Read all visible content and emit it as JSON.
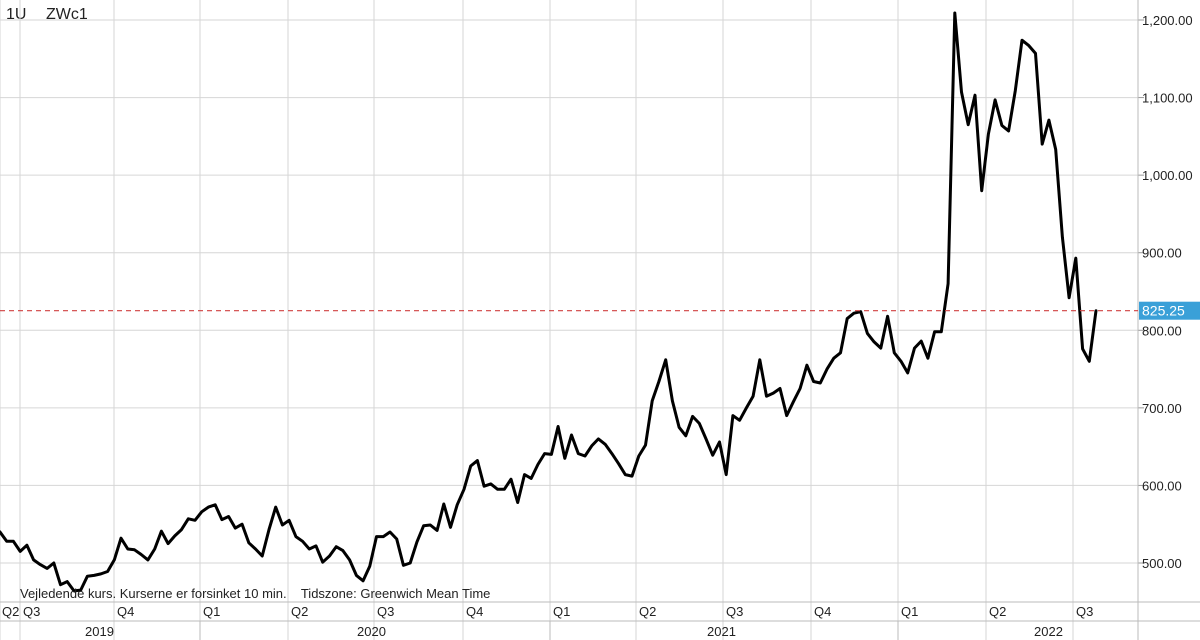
{
  "header": {
    "interval": "1U",
    "symbol": "ZWc1"
  },
  "footer_note": "Vejledende kurs. Kurserne er forsinket 10 min.    Tidszone: Greenwich Mean Time",
  "colors": {
    "line": "#000000",
    "reference_line": "#d04040",
    "price_tag": "#3aa0d8",
    "grid": "#d6d6d6"
  },
  "chart_data": {
    "type": "line",
    "title": "",
    "xlabel": "",
    "ylabel": "",
    "ylim": [
      450,
      1220
    ],
    "ytick_values": [
      500,
      600,
      700,
      800,
      900,
      1000,
      1100,
      1200
    ],
    "ytick_labels": [
      "500.00",
      "600.00",
      "700.00",
      "800.00",
      "900.00",
      "1,000.00",
      "1,100.00",
      "1,200.00"
    ],
    "current_price": 825.25,
    "current_price_label": "825.25",
    "grid": true,
    "quarter_labels": [
      "Q2",
      "Q3",
      "Q4",
      "Q1",
      "Q2",
      "Q3",
      "Q4",
      "Q1",
      "Q2",
      "Q3",
      "Q4",
      "Q1",
      "Q2",
      "Q3"
    ],
    "year_labels": [
      "2019",
      "2020",
      "2021",
      "2022"
    ],
    "series": [
      {
        "values": [
          540,
          528,
          528,
          515,
          523,
          504,
          498,
          493,
          500,
          472,
          476,
          464,
          465,
          483,
          484,
          486,
          489,
          504,
          532,
          518,
          517,
          511,
          504,
          518,
          541,
          525,
          535,
          543,
          557,
          555,
          566,
          572,
          575,
          556,
          560,
          545,
          550,
          526,
          518,
          509,
          543,
          572,
          549,
          555,
          534,
          528,
          518,
          522,
          501,
          509,
          521,
          516,
          504,
          484,
          477,
          496,
          534,
          534,
          540,
          531,
          497,
          500,
          527,
          548,
          549,
          542,
          576,
          546,
          575,
          595,
          625,
          632,
          599,
          602,
          595,
          595,
          608,
          578,
          614,
          609,
          627,
          641,
          640,
          676,
          635,
          665,
          641,
          638,
          651,
          660,
          653,
          641,
          628,
          614,
          612,
          638,
          652,
          709,
          734,
          762,
          709,
          675,
          664,
          689,
          680,
          660,
          639,
          656,
          614,
          690,
          684,
          700,
          715,
          762,
          715,
          719,
          725,
          690,
          708,
          725,
          755,
          734,
          732,
          750,
          764,
          771,
          815,
          822,
          824,
          796,
          785,
          777,
          818,
          771,
          760,
          745,
          777,
          786,
          764,
          798,
          798,
          860,
          1209,
          1107,
          1065,
          1103,
          980,
          1053,
          1097,
          1064,
          1057,
          1109,
          1174,
          1167,
          1157,
          1040,
          1071,
          1033,
          920,
          842,
          893,
          776,
          760,
          825.25
        ]
      }
    ]
  }
}
